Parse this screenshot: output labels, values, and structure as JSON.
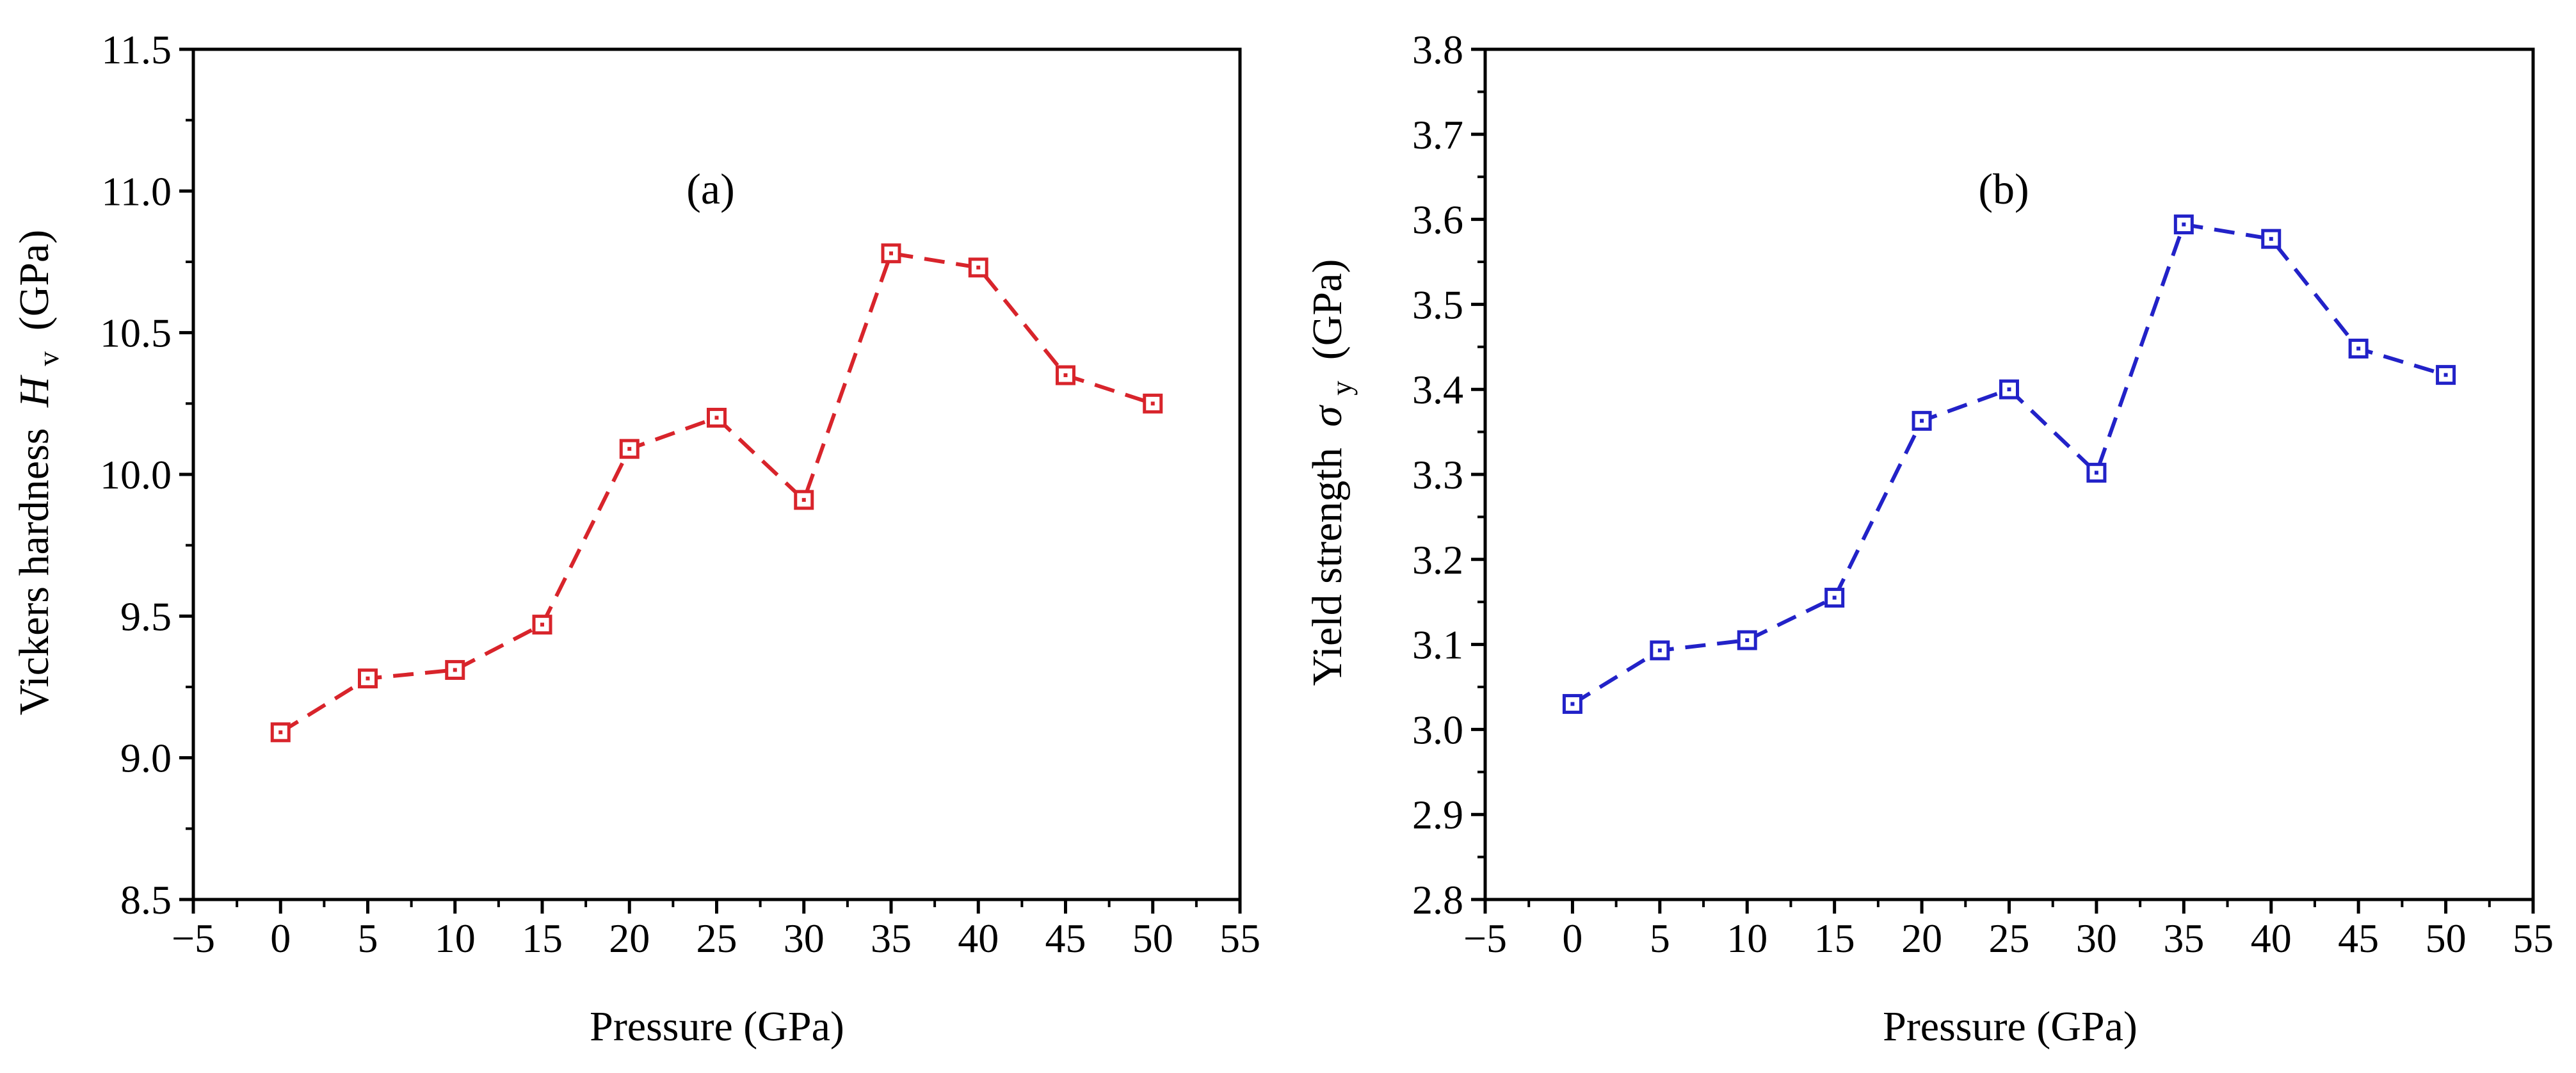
{
  "chart_data": [
    {
      "type": "line",
      "panel_label": "(a)",
      "xlabel": "Pressure (GPa)",
      "ylabel": "Vickers hardness",
      "ylabel_symbol": "H",
      "ylabel_subscript": "v",
      "ylabel_unit": "(GPa)",
      "xlim": [
        -5,
        55
      ],
      "ylim": [
        8.5,
        11.5
      ],
      "xticks": [
        -5,
        0,
        5,
        10,
        15,
        20,
        25,
        30,
        35,
        40,
        45,
        50,
        55
      ],
      "xtick_labels": [
        "−5",
        "0",
        "5",
        "10",
        "15",
        "20",
        "25",
        "30",
        "35",
        "40",
        "45",
        "50",
        "55"
      ],
      "yticks": [
        8.5,
        9.0,
        9.5,
        10.0,
        10.5,
        11.0,
        11.5
      ],
      "ytick_labels": [
        "8.5",
        "9.0",
        "9.5",
        "10.0",
        "10.5",
        "11.0",
        "11.5"
      ],
      "grid": false,
      "series": [
        {
          "name": "Vickers hardness",
          "color": "#d8242b",
          "marker": "square",
          "line_style": "dashed",
          "x": [
            0,
            5,
            10,
            15,
            20,
            25,
            30,
            35,
            40,
            45,
            50
          ],
          "y": [
            9.09,
            9.28,
            9.31,
            9.47,
            10.09,
            10.2,
            9.91,
            10.78,
            10.73,
            10.35,
            10.25
          ]
        }
      ]
    },
    {
      "type": "line",
      "panel_label": "(b)",
      "xlabel": "Pressure (GPa)",
      "ylabel": "Yield strength",
      "ylabel_symbol": "σ",
      "ylabel_subscript": "y",
      "ylabel_unit": "(GPa)",
      "xlim": [
        -5,
        55
      ],
      "ylim": [
        2.8,
        3.8
      ],
      "xticks": [
        -5,
        0,
        5,
        10,
        15,
        20,
        25,
        30,
        35,
        40,
        45,
        50,
        55
      ],
      "xtick_labels": [
        "−5",
        "0",
        "5",
        "10",
        "15",
        "20",
        "25",
        "30",
        "35",
        "40",
        "45",
        "50",
        "55"
      ],
      "yticks": [
        2.8,
        2.9,
        3.0,
        3.1,
        3.2,
        3.3,
        3.4,
        3.5,
        3.6,
        3.7,
        3.8
      ],
      "ytick_labels": [
        "2.8",
        "2.9",
        "3.0",
        "3.1",
        "3.2",
        "3.3",
        "3.4",
        "3.5",
        "3.6",
        "3.7",
        "3.8"
      ],
      "grid": false,
      "series": [
        {
          "name": "Yield strength",
          "color": "#2222c8",
          "marker": "square",
          "line_style": "dashed",
          "x": [
            0,
            5,
            10,
            15,
            20,
            25,
            30,
            35,
            40,
            45,
            50
          ],
          "y": [
            3.03,
            3.093,
            3.105,
            3.155,
            3.363,
            3.4,
            3.302,
            3.594,
            3.577,
            3.448,
            3.417
          ]
        }
      ]
    }
  ]
}
